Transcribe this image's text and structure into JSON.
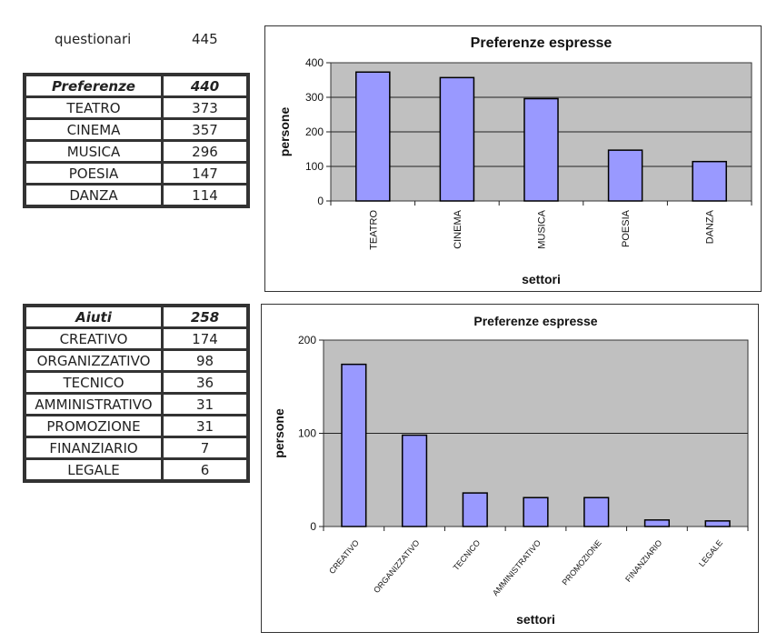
{
  "summary": {
    "label": "questionari",
    "value": "445"
  },
  "table_preferenze": {
    "header": {
      "label": "Preferenze",
      "value": "440"
    },
    "rows": [
      {
        "label": "TEATRO",
        "value": "373"
      },
      {
        "label": "CINEMA",
        "value": "357"
      },
      {
        "label": "MUSICA",
        "value": "296"
      },
      {
        "label": "POESIA",
        "value": "147"
      },
      {
        "label": "DANZA",
        "value": "114"
      }
    ]
  },
  "table_aiuti": {
    "header": {
      "label": "Aiuti",
      "value": "258"
    },
    "rows": [
      {
        "label": "CREATIVO",
        "value": "174"
      },
      {
        "label": "ORGANIZZATIVO",
        "value": "98"
      },
      {
        "label": "TECNICO",
        "value": "36"
      },
      {
        "label": "AMMINISTRATIVO",
        "value": "31"
      },
      {
        "label": "PROMOZIONE",
        "value": "31"
      },
      {
        "label": "FINANZIARIO",
        "value": "7"
      },
      {
        "label": "LEGALE",
        "value": "6"
      }
    ]
  },
  "chart_data": [
    {
      "type": "bar",
      "title": "Preferenze espresse",
      "xlabel": "settori",
      "ylabel": "persone",
      "categories": [
        "TEATRO",
        "CINEMA",
        "MUSICA",
        "POESIA",
        "DANZA"
      ],
      "values": [
        373,
        357,
        296,
        147,
        114
      ],
      "ylim": [
        0,
        400
      ],
      "yticks": [
        0,
        100,
        200,
        300,
        400
      ],
      "grid": true,
      "bar_color": "#9999ff",
      "plot_bg": "#c0c0c0"
    },
    {
      "type": "bar",
      "title": "Preferenze espresse",
      "xlabel": "settori",
      "ylabel": "persone",
      "categories": [
        "CREATIVO",
        "ORGANIZZATIVO",
        "TECNICO",
        "AMMINISTRATIVO",
        "PROMOZIONE",
        "FINANZIARIO",
        "LEGALE"
      ],
      "values": [
        174,
        98,
        36,
        31,
        31,
        7,
        6
      ],
      "ylim": [
        0,
        200
      ],
      "yticks": [
        0,
        100,
        200
      ],
      "grid": true,
      "bar_color": "#9999ff",
      "plot_bg": "#c0c0c0"
    }
  ]
}
